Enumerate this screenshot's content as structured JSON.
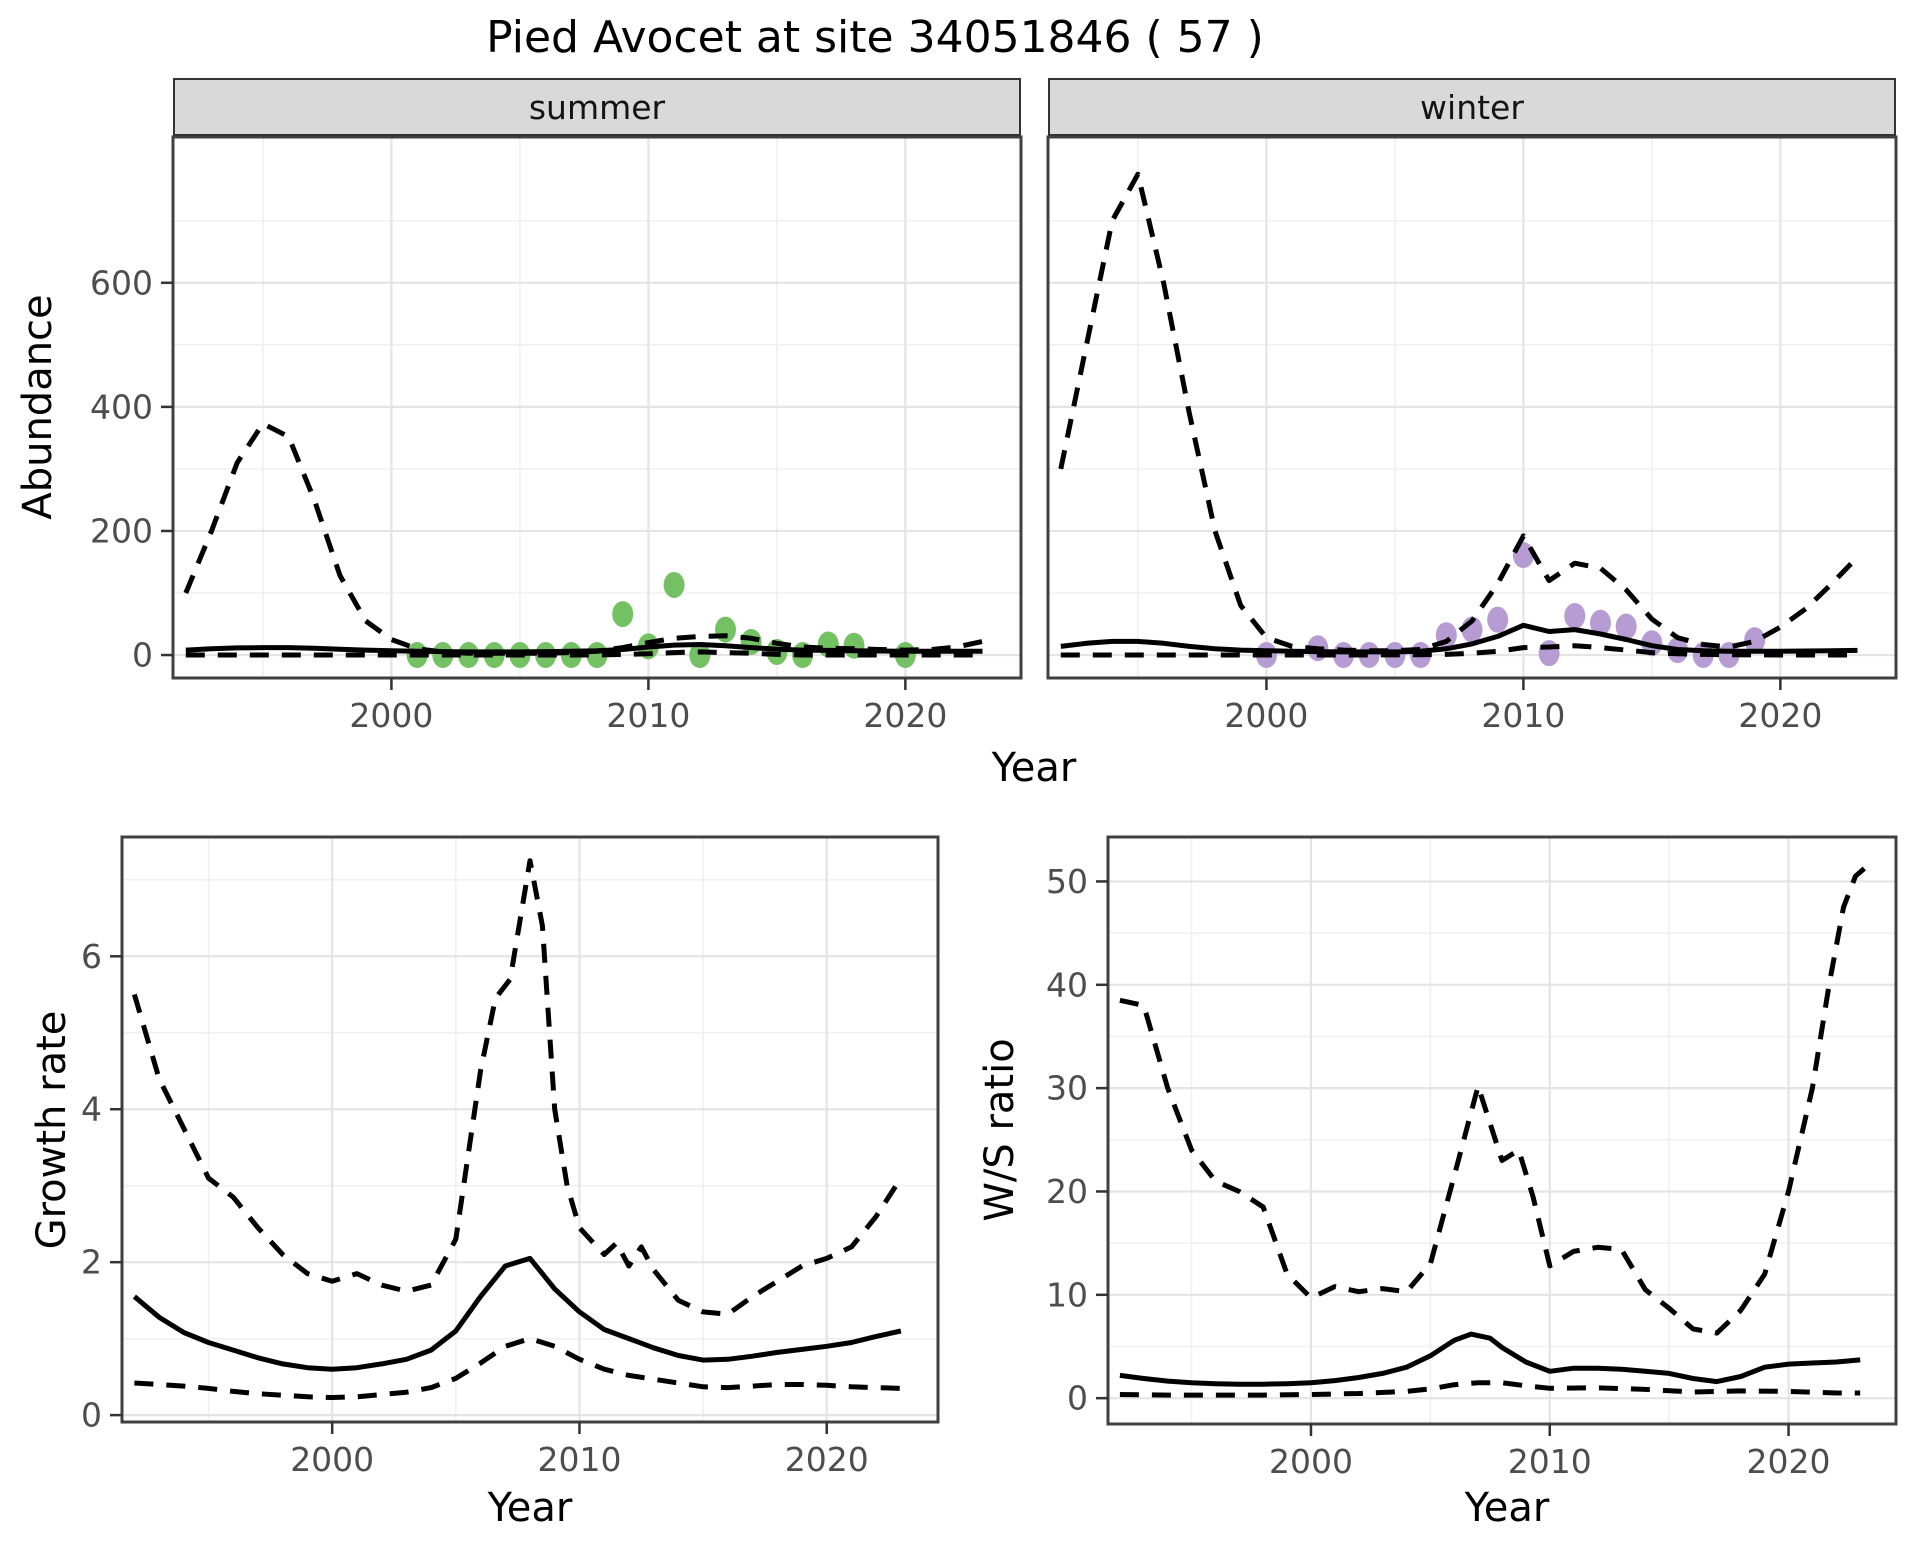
{
  "title": "Pied Avocet at site 34051846 ( 57 )",
  "labels": {
    "abundance": "Abundance",
    "growth_rate": "Growth rate",
    "ws_ratio": "W/S ratio",
    "year": "Year"
  },
  "colors": {
    "summer_point": "#74c163",
    "winter_point": "#b69cd3",
    "line": "#000000",
    "strip_bg": "#d9d9d9",
    "grid_major": "#e4e4e4",
    "grid_minor": "#f0f0f0",
    "panel_border": "#404040",
    "tick_mark": "#333333",
    "tick_text": "#4d4d4d"
  },
  "chart_data": [
    {
      "id": "abundance-summer",
      "type": "line",
      "facet_label": "summer",
      "xlabel": "Year",
      "ylabel": "Abundance",
      "xlim": [
        1991.5,
        2024.5
      ],
      "ylim": [
        -37,
        835
      ],
      "xticks": [
        2000,
        2010,
        2020
      ],
      "yticks": [
        0,
        200,
        400,
        600
      ],
      "grid": true,
      "points": {
        "label": "observed summer counts",
        "color": "#74c163",
        "x": [
          2001,
          2002,
          2003,
          2004,
          2005,
          2006,
          2007,
          2008,
          2009,
          2010,
          2011,
          2012,
          2013,
          2014,
          2015,
          2016,
          2017,
          2018,
          2020
        ],
        "y": [
          0,
          0,
          0,
          0,
          0,
          0,
          0,
          0,
          66,
          14,
          113,
          0,
          41,
          21,
          5,
          0,
          17,
          15,
          0
        ]
      },
      "series": [
        {
          "name": "fit",
          "style": "solid",
          "x": [
            1992,
            1993,
            1994,
            1995,
            1996,
            1997,
            1998,
            1999,
            2000,
            2001,
            2002,
            2003,
            2004,
            2005,
            2006,
            2007,
            2008,
            2009,
            2010,
            2011,
            2012,
            2013,
            2014,
            2015,
            2016,
            2017,
            2018,
            2019,
            2020,
            2021,
            2022,
            2023
          ],
          "y": [
            8,
            10,
            11.5,
            12,
            12,
            11,
            9.5,
            8,
            7,
            6,
            5.5,
            5,
            5,
            5,
            5.5,
            6,
            7,
            9,
            13,
            16,
            17,
            15,
            12,
            9.5,
            8,
            7.5,
            7,
            6.5,
            6,
            6,
            6,
            6
          ]
        },
        {
          "name": "ci-lower",
          "style": "dashed",
          "x": [
            1992,
            1994,
            1996,
            1998,
            2000,
            2002,
            2004,
            2006,
            2008,
            2009,
            2010,
            2011,
            2012,
            2013,
            2014,
            2015,
            2016,
            2018,
            2020,
            2022,
            2023
          ],
          "y": [
            0,
            0,
            0,
            0,
            0,
            0,
            0,
            0,
            0,
            1,
            2,
            4,
            5,
            4,
            3,
            1,
            0,
            0,
            0,
            0,
            0
          ]
        },
        {
          "name": "ci-upper",
          "style": "dashed",
          "x": [
            1992,
            1993,
            1994,
            1995,
            1996,
            1997,
            1998,
            1999,
            2000,
            2001,
            2002,
            2003,
            2004,
            2005,
            2006,
            2007,
            2008,
            2009,
            2010,
            2011,
            2012,
            2013,
            2014,
            2015,
            2016,
            2017,
            2018,
            2019,
            2020,
            2021,
            2022,
            2023
          ],
          "y": [
            100,
            200,
            310,
            373,
            352,
            250,
            128,
            55,
            25,
            10,
            5,
            3,
            3,
            3,
            3,
            4,
            6,
            12,
            20,
            27,
            30,
            31,
            27,
            19,
            13,
            11,
            10,
            9,
            8,
            9,
            13,
            22
          ]
        }
      ]
    },
    {
      "id": "abundance-winter",
      "type": "line",
      "facet_label": "winter",
      "xlabel": "Year",
      "ylabel": "Abundance",
      "xlim": [
        1991.5,
        2024.5
      ],
      "ylim": [
        -37,
        835
      ],
      "xticks": [
        2000,
        2010,
        2020
      ],
      "yticks": [
        0,
        200,
        400,
        600
      ],
      "grid": true,
      "points": {
        "label": "observed winter counts",
        "color": "#b69cd3",
        "x": [
          2000,
          2002,
          2003,
          2004,
          2005,
          2006,
          2007,
          2008,
          2009,
          2010,
          2011,
          2012,
          2013,
          2014,
          2015,
          2016,
          2017,
          2018,
          2019
        ],
        "y": [
          0,
          11,
          0,
          0,
          0,
          0,
          32,
          41,
          57,
          161,
          3,
          63,
          52,
          46,
          19,
          8,
          0,
          0,
          24
        ]
      },
      "series": [
        {
          "name": "fit",
          "style": "solid",
          "x": [
            1992,
            1993,
            1994,
            1995,
            1996,
            1997,
            1998,
            1999,
            2000,
            2001,
            2002,
            2003,
            2004,
            2005,
            2006,
            2007,
            2008,
            2009,
            2010,
            2011,
            2012,
            2013,
            2014,
            2015,
            2016,
            2017,
            2018,
            2019,
            2020,
            2021,
            2022,
            2023
          ],
          "y": [
            14,
            19,
            22,
            22,
            19,
            14,
            10,
            8,
            7,
            6,
            5.5,
            5,
            5,
            5,
            6,
            10,
            18,
            30,
            48,
            38,
            41,
            34,
            25,
            15,
            9,
            7,
            6,
            6,
            6,
            6.5,
            7,
            7.5
          ]
        },
        {
          "name": "ci-lower",
          "style": "dashed",
          "x": [
            1992,
            1996,
            2000,
            2004,
            2006,
            2007,
            2008,
            2009,
            2010,
            2011,
            2012,
            2013,
            2014,
            2015,
            2016,
            2017,
            2018,
            2020,
            2023
          ],
          "y": [
            0,
            0,
            0,
            0,
            0.5,
            1,
            3,
            6,
            12,
            13,
            15,
            12,
            8,
            4,
            2,
            1,
            0.5,
            0,
            0
          ]
        },
        {
          "name": "ci-upper",
          "style": "dashed",
          "x": [
            1992,
            1993,
            1994,
            1995,
            1996,
            1997,
            1998,
            1999,
            2000,
            2001,
            2002,
            2003,
            2004,
            2005,
            2006,
            2007,
            2008,
            2009,
            2010,
            2011,
            2012,
            2013,
            2014,
            2015,
            2016,
            2017,
            2018,
            2019,
            2020,
            2021,
            2022,
            2023
          ],
          "y": [
            300,
            500,
            700,
            775,
            600,
            390,
            200,
            80,
            28,
            14,
            10,
            8,
            7,
            7,
            9,
            22,
            55,
            115,
            192,
            120,
            148,
            140,
            105,
            58,
            28,
            17,
            13,
            22,
            45,
            75,
            115,
            158
          ]
        }
      ]
    },
    {
      "id": "growth-rate",
      "type": "line",
      "facet_label": "",
      "xlabel": "Year",
      "ylabel": "Growth rate",
      "xlim": [
        1991.5,
        2024.5
      ],
      "ylim": [
        -0.09,
        7.56
      ],
      "xticks": [
        2000,
        2010,
        2020
      ],
      "yticks": [
        0,
        2,
        4,
        6
      ],
      "grid": true,
      "series": [
        {
          "name": "fit",
          "style": "solid",
          "x": [
            1992,
            1993,
            1994,
            1995,
            1996,
            1997,
            1998,
            1999,
            2000,
            2001,
            2002,
            2003,
            2004,
            2005,
            2006,
            2007,
            2008,
            2009,
            2010,
            2011,
            2012,
            2013,
            2014,
            2015,
            2016,
            2017,
            2018,
            2019,
            2020,
            2021,
            2022,
            2023
          ],
          "y": [
            1.55,
            1.28,
            1.08,
            0.95,
            0.85,
            0.75,
            0.67,
            0.62,
            0.6,
            0.62,
            0.67,
            0.73,
            0.85,
            1.1,
            1.55,
            1.95,
            2.05,
            1.65,
            1.35,
            1.12,
            1.0,
            0.88,
            0.78,
            0.72,
            0.73,
            0.77,
            0.82,
            0.86,
            0.9,
            0.95,
            1.03,
            1.1
          ]
        },
        {
          "name": "ci-lower",
          "style": "dashed",
          "x": [
            1992,
            1993,
            1994,
            1995,
            1996,
            1997,
            1998,
            1999,
            2000,
            2001,
            2002,
            2003,
            2004,
            2005,
            2006,
            2007,
            2008,
            2009,
            2010,
            2011,
            2012,
            2013,
            2014,
            2015,
            2016,
            2017,
            2018,
            2019,
            2020,
            2021,
            2022,
            2023
          ],
          "y": [
            0.42,
            0.4,
            0.38,
            0.35,
            0.31,
            0.28,
            0.26,
            0.24,
            0.23,
            0.24,
            0.27,
            0.3,
            0.36,
            0.48,
            0.68,
            0.9,
            1.0,
            0.9,
            0.73,
            0.6,
            0.52,
            0.47,
            0.42,
            0.37,
            0.36,
            0.38,
            0.4,
            0.4,
            0.39,
            0.37,
            0.36,
            0.35
          ]
        },
        {
          "name": "ci-upper",
          "style": "dashed",
          "x": [
            1992,
            1993,
            1994,
            1995,
            1996,
            1997,
            1998,
            1999,
            2000,
            2001,
            2002,
            2003,
            2004,
            2005,
            2006,
            2006.6,
            2007.2,
            2008,
            2008.5,
            2009,
            2009.5,
            2010,
            2011,
            2011.5,
            2012,
            2012.5,
            2013,
            2014,
            2015,
            2016,
            2017,
            2018,
            2019,
            2020,
            2021,
            2022,
            2023
          ],
          "y": [
            5.5,
            4.4,
            3.75,
            3.1,
            2.85,
            2.45,
            2.1,
            1.85,
            1.75,
            1.85,
            1.7,
            1.62,
            1.7,
            2.3,
            4.5,
            5.45,
            5.7,
            7.25,
            6.4,
            4.0,
            3.0,
            2.45,
            2.1,
            2.25,
            1.95,
            2.2,
            1.9,
            1.5,
            1.35,
            1.32,
            1.55,
            1.75,
            1.95,
            2.05,
            2.2,
            2.6,
            3.1
          ]
        }
      ]
    },
    {
      "id": "ws-ratio",
      "type": "line",
      "facet_label": "",
      "xlabel": "Year",
      "ylabel": "W/S ratio",
      "xlim": [
        1991.5,
        2024.5
      ],
      "ylim": [
        -2.5,
        54.3
      ],
      "xticks": [
        2000,
        2010,
        2020
      ],
      "yticks": [
        0,
        10,
        20,
        30,
        40,
        50
      ],
      "grid": true,
      "series": [
        {
          "name": "fit",
          "style": "solid",
          "x": [
            1992,
            1993,
            1994,
            1995,
            1996,
            1997,
            1998,
            1999,
            2000,
            2001,
            2002,
            2003,
            2004,
            2005,
            2006,
            2006.7,
            2007.5,
            2008,
            2009,
            2010,
            2011,
            2012,
            2013,
            2014,
            2015,
            2016,
            2017,
            2018,
            2019,
            2020,
            2021,
            2022,
            2023
          ],
          "y": [
            2.2,
            1.9,
            1.65,
            1.5,
            1.4,
            1.35,
            1.35,
            1.4,
            1.5,
            1.7,
            2.0,
            2.4,
            3.0,
            4.1,
            5.6,
            6.2,
            5.8,
            4.9,
            3.5,
            2.6,
            2.9,
            2.9,
            2.8,
            2.6,
            2.4,
            1.9,
            1.6,
            2.1,
            3.0,
            3.3,
            3.4,
            3.5,
            3.7
          ]
        },
        {
          "name": "ci-lower",
          "style": "dashed",
          "x": [
            1992,
            1994,
            1996,
            1998,
            2000,
            2002,
            2004,
            2005,
            2006,
            2007,
            2008,
            2009,
            2010,
            2012,
            2014,
            2016,
            2018,
            2020,
            2022,
            2023
          ],
          "y": [
            0.35,
            0.3,
            0.3,
            0.3,
            0.35,
            0.45,
            0.65,
            0.9,
            1.3,
            1.5,
            1.5,
            1.2,
            0.95,
            1.0,
            0.85,
            0.6,
            0.7,
            0.65,
            0.5,
            0.5
          ]
        },
        {
          "name": "ci-upper",
          "style": "dashed",
          "x": [
            1992,
            1993,
            1994,
            1995,
            1996,
            1997,
            1998,
            1999,
            2000,
            2001,
            2002,
            2003,
            2004,
            2005,
            2006,
            2007,
            2008,
            2008.7,
            2009.3,
            2010,
            2011,
            2012,
            2013,
            2014,
            2015,
            2016,
            2017,
            2018,
            2019,
            2020,
            2021,
            2021.7,
            2022.3,
            2022.8,
            2023.3
          ],
          "y": [
            38.5,
            38,
            30,
            24,
            21,
            20,
            18.5,
            12,
            9.7,
            10.8,
            10.3,
            10.6,
            10.3,
            13,
            21.5,
            30.2,
            23,
            24,
            19.5,
            12.8,
            14.2,
            14.6,
            14.4,
            10.5,
            8.7,
            6.7,
            6.3,
            8.5,
            12,
            20,
            30,
            40,
            47.5,
            50.5,
            51.5
          ]
        }
      ]
    }
  ]
}
